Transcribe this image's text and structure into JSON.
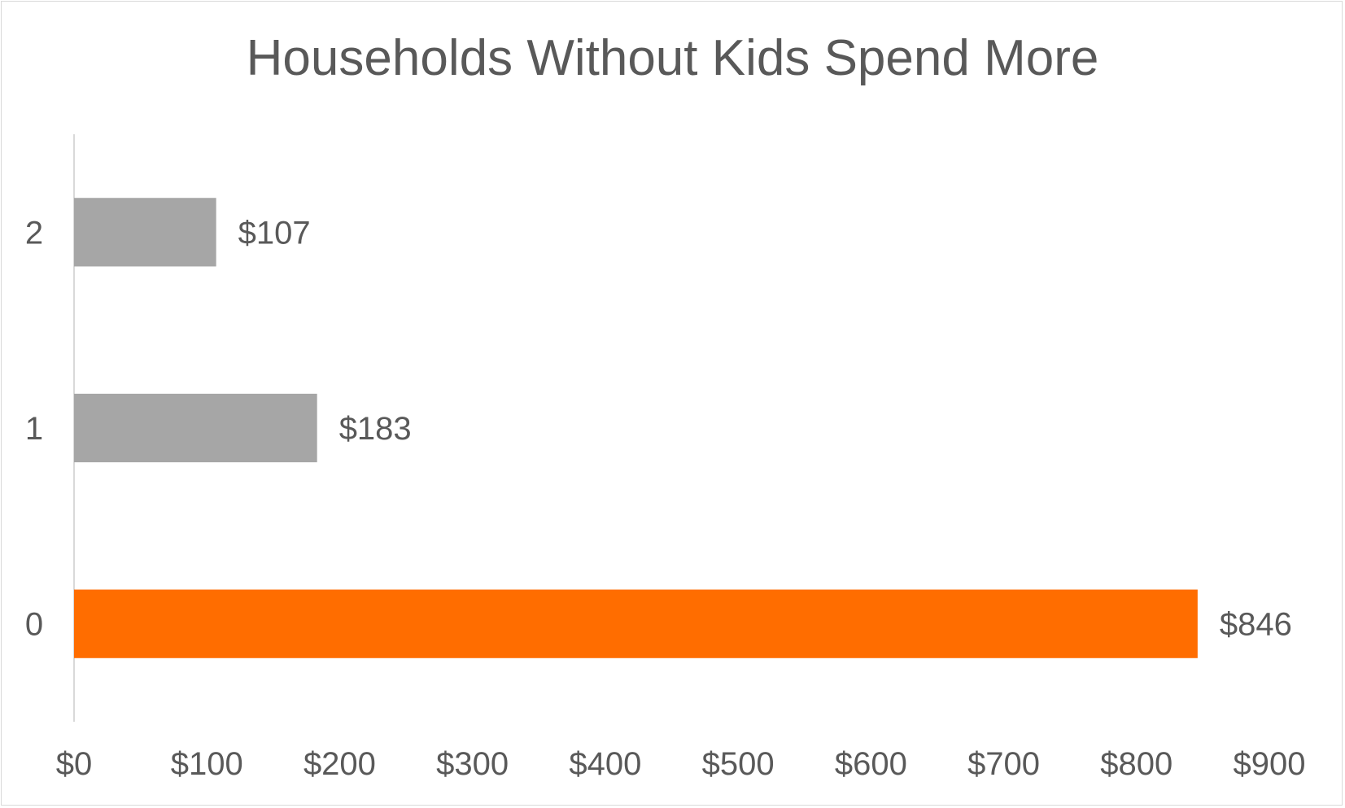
{
  "chart_data": {
    "type": "bar",
    "orientation": "horizontal",
    "title": "Households Without Kids Spend More",
    "xlabel": "",
    "ylabel": "",
    "categories": [
      "0",
      "1",
      "2"
    ],
    "values": [
      846,
      183,
      107
    ],
    "data_labels": [
      "$846",
      "$183",
      "$107"
    ],
    "bar_colors": [
      "#ff6d00",
      "#a6a6a6",
      "#a6a6a6"
    ],
    "xlim": [
      0,
      900
    ],
    "xticks": [
      0,
      100,
      200,
      300,
      400,
      500,
      600,
      700,
      800,
      900
    ],
    "xtick_labels": [
      "$0",
      "$100",
      "$200",
      "$300",
      "$400",
      "$500",
      "$600",
      "$700",
      "$800",
      "$900"
    ],
    "grid": false,
    "legend": "none"
  },
  "colors": {
    "highlight": "#ff6d00",
    "default_bar": "#a6a6a6",
    "text": "#595959",
    "axis_line": "#d9d9d9"
  }
}
